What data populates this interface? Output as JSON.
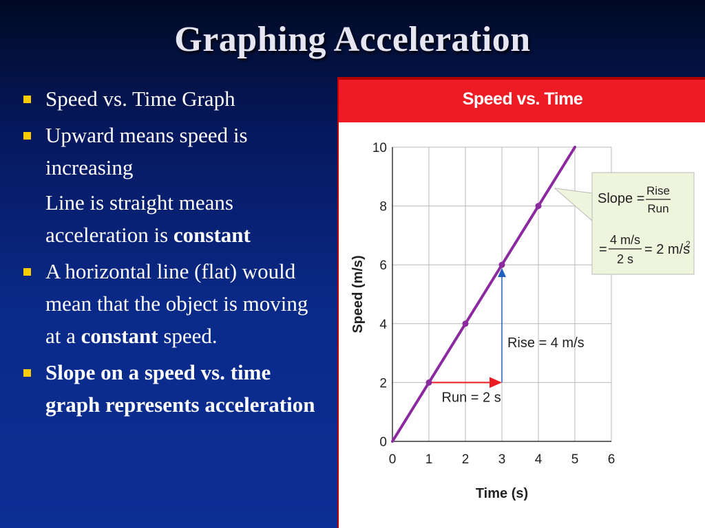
{
  "slide": {
    "title": "Graphing Acceleration",
    "bullets": [
      {
        "text": "Speed vs. Time Graph"
      },
      {
        "text": "Upward means speed is increasing"
      },
      {
        "pre": "Line is straight means acceleration is ",
        "bold": "constant"
      },
      {
        "pre": "A horizontal line (flat) would mean that the object is moving at a ",
        "bold": "constant",
        "post": " speed."
      },
      {
        "bold": "Slope on a speed vs. time graph represents acceleration"
      }
    ]
  },
  "chart_data": {
    "type": "line",
    "title": "Speed vs. Time",
    "xlabel": "Time (s)",
    "ylabel": "Speed (m/s)",
    "xlim": [
      0,
      6
    ],
    "ylim": [
      0,
      10
    ],
    "x_ticks": [
      0,
      1,
      2,
      3,
      4,
      5,
      6
    ],
    "y_ticks": [
      0,
      2,
      4,
      6,
      8,
      10
    ],
    "grid": true,
    "series": [
      {
        "x": [
          0,
          5
        ],
        "y": [
          0,
          10
        ],
        "color": "#8b2a9f"
      }
    ],
    "points": [
      {
        "x": 1,
        "y": 2
      },
      {
        "x": 2,
        "y": 4
      },
      {
        "x": 3,
        "y": 6
      },
      {
        "x": 4,
        "y": 8
      }
    ],
    "run_arrow": {
      "from": [
        1,
        2
      ],
      "to": [
        3,
        2
      ],
      "label": "Run = 2 s",
      "color": "#ed1c24"
    },
    "rise_arrow": {
      "from": [
        3,
        2
      ],
      "to": [
        3,
        6
      ],
      "label": "Rise = 4 m/s",
      "color": "#1f5fbf"
    },
    "callout": {
      "slope_label": "Slope =",
      "rise": "Rise",
      "run": "Run",
      "eq": "=",
      "num": "4 m/s",
      "den": "2 s",
      "result": "= 2 m/s",
      "result_sup": "2",
      "bg": "#eef5dc"
    }
  }
}
